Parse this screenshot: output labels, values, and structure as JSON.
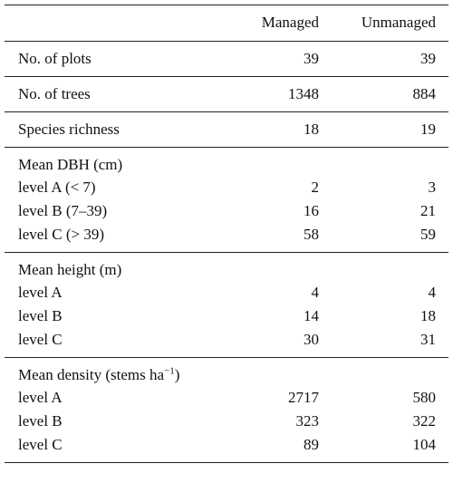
{
  "table": {
    "columns": [
      "Managed",
      "Unmanaged"
    ],
    "sections": [
      {
        "rows": [
          [
            "No. of plots",
            39,
            39
          ]
        ]
      },
      {
        "rows": [
          [
            "No. of trees",
            1348,
            884
          ]
        ]
      },
      {
        "rows": [
          [
            "Species richness",
            18,
            19
          ]
        ]
      },
      {
        "title": "Mean DBH (cm)",
        "rows": [
          [
            "level A (< 7)",
            2,
            3
          ],
          [
            "level B (7–39)",
            16,
            21
          ],
          [
            "level C (> 39)",
            58,
            59
          ]
        ]
      },
      {
        "title": "Mean height (m)",
        "rows": [
          [
            "level A",
            4,
            4
          ],
          [
            "level B",
            14,
            18
          ],
          [
            "level C",
            30,
            31
          ]
        ]
      },
      {
        "title": "Mean density (stems ha",
        "title_sup": "−1",
        "title_end": ")",
        "rows": [
          [
            "level A",
            2717,
            580
          ],
          [
            "level B",
            323,
            322
          ],
          [
            "level C",
            89,
            104
          ]
        ]
      }
    ]
  }
}
